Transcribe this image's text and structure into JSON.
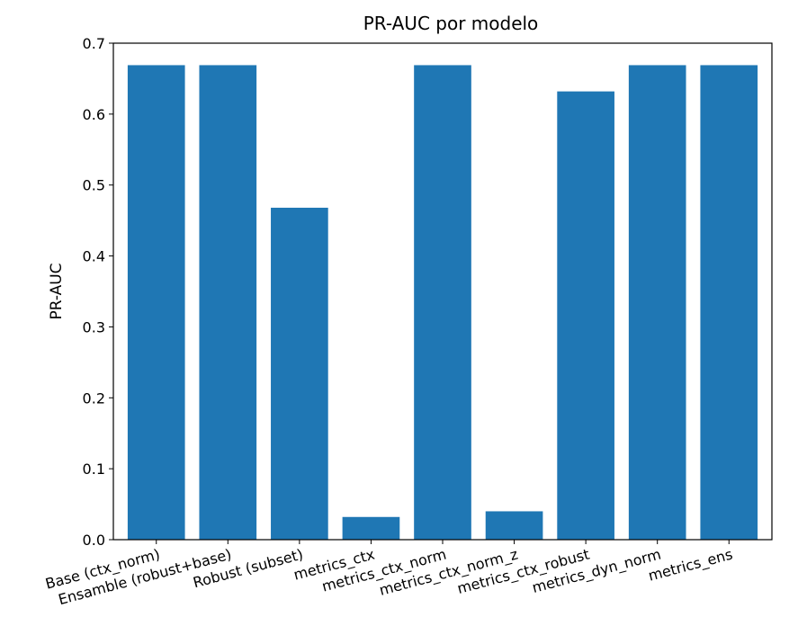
{
  "chart_data": {
    "type": "bar",
    "title": "PR-AUC por modelo",
    "xlabel": "",
    "ylabel": "PR-AUC",
    "categories": [
      "Base (ctx_norm)",
      "Ensamble (robust+base)",
      "Robust (subset)",
      "metrics_ctx",
      "metrics_ctx_norm",
      "metrics_ctx_norm_z",
      "metrics_ctx_robust",
      "metrics_dyn_norm",
      "metrics_ens"
    ],
    "values": [
      0.669,
      0.669,
      0.468,
      0.032,
      0.669,
      0.04,
      0.632,
      0.669,
      0.669
    ],
    "ylim": [
      0,
      0.7
    ],
    "yticks": [
      "0.0",
      "0.1",
      "0.2",
      "0.3",
      "0.4",
      "0.5",
      "0.6",
      "0.7"
    ],
    "bar_color": "#1f77b4",
    "grid": false,
    "legend": "none"
  }
}
